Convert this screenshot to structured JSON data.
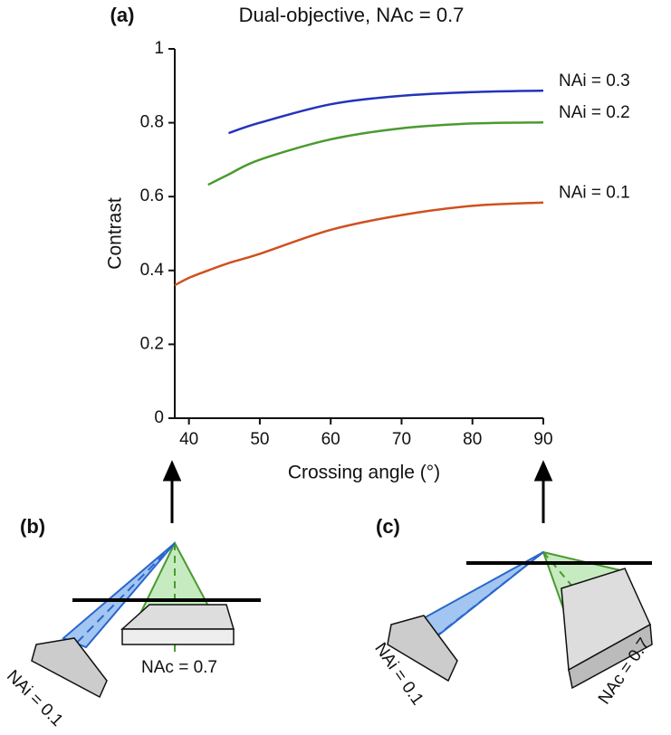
{
  "chart_data": {
    "type": "line",
    "panel_label": "(a)",
    "title": "Dual-objective, NAc = 0.7",
    "x_label": "Crossing angle (°)",
    "y_label": "Contrast",
    "x": [
      38,
      40,
      42.7,
      45.6,
      50,
      60,
      70,
      80,
      90
    ],
    "series": [
      {
        "name": "NAi = 0.3",
        "color": "#2233bb",
        "values": [
          null,
          null,
          null,
          0.772,
          0.8,
          0.85,
          0.873,
          0.883,
          0.887
        ]
      },
      {
        "name": "NAi = 0.2",
        "color": "#4a9a30",
        "values": [
          null,
          null,
          0.632,
          0.66,
          0.7,
          0.755,
          0.785,
          0.798,
          0.801
        ]
      },
      {
        "name": "NAi = 0.1",
        "color": "#d0501e",
        "values": [
          0.36,
          0.38,
          0.4,
          0.42,
          0.445,
          0.51,
          0.55,
          0.575,
          0.584
        ]
      }
    ],
    "xlim": [
      38,
      90
    ],
    "xticks": [
      40,
      50,
      60,
      70,
      80,
      90
    ],
    "ylim": [
      0,
      1
    ],
    "yticks": [
      0,
      0.2,
      0.4,
      0.6,
      0.8,
      1
    ],
    "grid": false
  },
  "diagrams": [
    {
      "label": "(b)",
      "nac": "NAc = 0.7",
      "nai": "NAi = 0.1"
    },
    {
      "label": "(c)",
      "nac": "NAc = 0.7",
      "nai": "NAi = 0.1"
    }
  ]
}
